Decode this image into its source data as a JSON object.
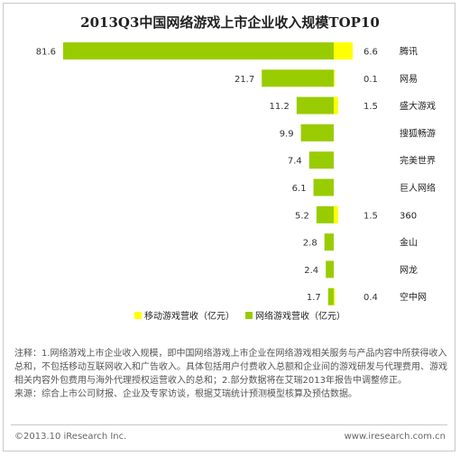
{
  "chart_data": {
    "type": "bar",
    "orientation": "horizontal-diverging",
    "title": "2013Q3中国网络游戏上市企业收入规模TOP10",
    "categories": [
      "腾讯",
      "网易",
      "盛大游戏",
      "搜狐畅游",
      "完美世界",
      "巨人网络",
      "360",
      "金山",
      "网龙",
      "空中网"
    ],
    "series": [
      {
        "name": "网络游戏营收（亿元）",
        "color": "#99cc00",
        "direction": "left",
        "values": [
          81.6,
          21.7,
          11.2,
          9.9,
          7.4,
          6.1,
          5.2,
          2.8,
          2.4,
          1.7
        ],
        "labels": [
          "81.6",
          "21.7",
          "11.2",
          "9.9",
          "7.4",
          "6.1",
          "5.2",
          "2.8",
          "2.4",
          "1.7"
        ]
      },
      {
        "name": "移动游戏营收（亿元）",
        "color": "#ffff00",
        "direction": "right",
        "values": [
          6.6,
          0.1,
          1.5,
          null,
          null,
          null,
          1.5,
          null,
          null,
          0.4
        ],
        "labels": [
          "6.6",
          "0.1",
          "1.5",
          "",
          "",
          "",
          "1.5",
          "",
          "",
          "0.4"
        ]
      }
    ],
    "legend": [
      {
        "label": "移动游戏营收（亿元）",
        "color": "#ffff00"
      },
      {
        "label": "网络游戏营收（亿元）",
        "color": "#99cc00"
      }
    ],
    "legend_position": "bottom",
    "grid": false
  },
  "notes": {
    "line1": "注释：1.网络游戏上市企业收入规模，即中国网络游戏上市企业在网络游戏相关服务与产品内容中所获得收入总和，不包括移动互联网收入和广告收入。具体包括用户付费收入总额和企业间的游戏研发与代理费用、游戏相关内容外包费用与海外代理授权运营收入的总和；2.部分数据将在艾瑞2013年报告中调整修正。",
    "line2": "来源：综合上市公司财报、企业及专家访谈，根据艾瑞统计预测模型核算及预估数据。"
  },
  "footer": {
    "copyright": "©2013.10 iResearch Inc.",
    "site": "www.iresearch.com.cn"
  }
}
